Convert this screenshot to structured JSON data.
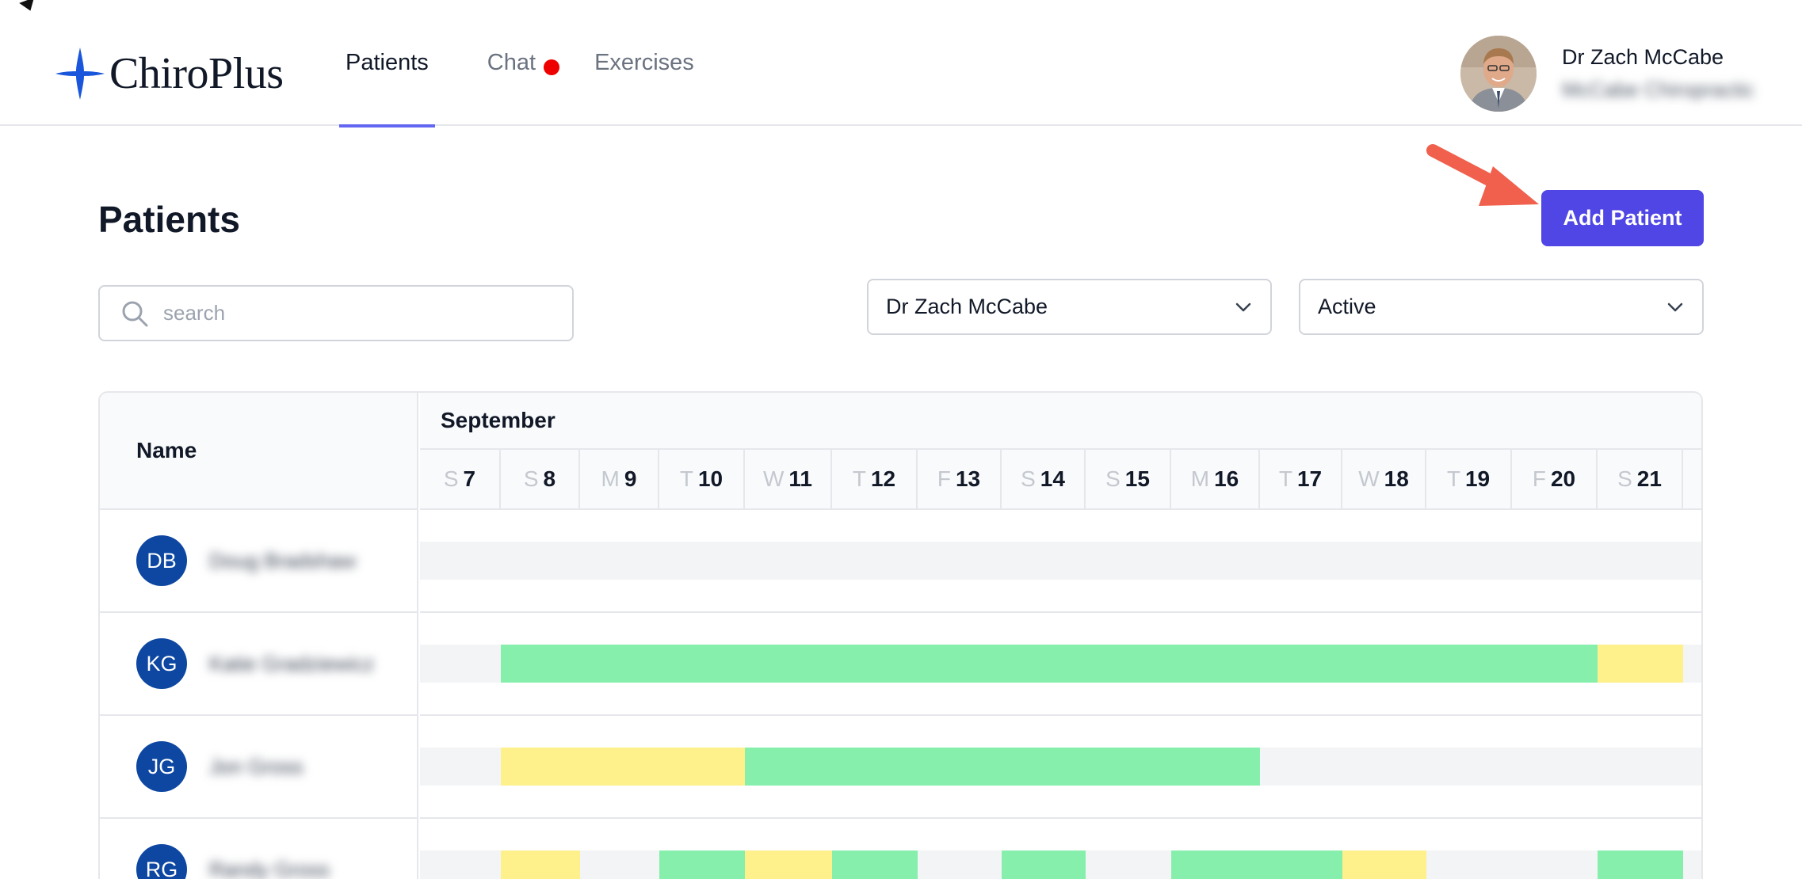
{
  "brand": {
    "name": "ChiroPlus",
    "color": "#1a56db"
  },
  "nav": [
    {
      "label": "Patients",
      "active": true,
      "badge": false
    },
    {
      "label": "Chat",
      "active": false,
      "badge": true
    },
    {
      "label": "Exercises",
      "active": false,
      "badge": false
    }
  ],
  "user": {
    "name": "Dr Zach McCabe",
    "clinic": "McCabe Chiropractic"
  },
  "page": {
    "title": "Patients",
    "add_button": "Add Patient"
  },
  "search": {
    "placeholder": "search",
    "value": ""
  },
  "filters": {
    "doctor": "Dr Zach McCabe",
    "status": "Active"
  },
  "table": {
    "name_header": "Name",
    "month": "September",
    "days": [
      {
        "letter": "S",
        "num": "7"
      },
      {
        "letter": "S",
        "num": "8"
      },
      {
        "letter": "M",
        "num": "9"
      },
      {
        "letter": "T",
        "num": "10"
      },
      {
        "letter": "W",
        "num": "11"
      },
      {
        "letter": "T",
        "num": "12"
      },
      {
        "letter": "F",
        "num": "13"
      },
      {
        "letter": "S",
        "num": "14"
      },
      {
        "letter": "S",
        "num": "15"
      },
      {
        "letter": "M",
        "num": "16"
      },
      {
        "letter": "T",
        "num": "17"
      },
      {
        "letter": "W",
        "num": "18"
      },
      {
        "letter": "T",
        "num": "19"
      },
      {
        "letter": "F",
        "num": "20"
      },
      {
        "letter": "S",
        "num": "21"
      }
    ],
    "colors": {
      "green": "#86efac",
      "yellow": "#fef08a",
      "empty": "#f3f4f6"
    },
    "patients": [
      {
        "initials": "DB",
        "name": "Doug Bradshaw",
        "status": [
          "",
          "",
          "",
          "",
          "",
          "",
          "",
          "",
          "",
          "",
          "",
          "",
          "",
          "",
          ""
        ]
      },
      {
        "initials": "KG",
        "name": "Katie Gradziewicz",
        "status": [
          "",
          "green",
          "green",
          "green",
          "green",
          "green",
          "green",
          "green",
          "green",
          "green",
          "green",
          "green",
          "green",
          "green",
          "yellow"
        ]
      },
      {
        "initials": "JG",
        "name": "Jon Gross",
        "status": [
          "",
          "yellow",
          "yellow",
          "yellow",
          "green",
          "green",
          "green",
          "green",
          "green",
          "green",
          "",
          "",
          "",
          "",
          ""
        ]
      },
      {
        "initials": "RG",
        "name": "Randy Gross",
        "status": [
          "",
          "yellow",
          "",
          "green",
          "yellow",
          "green",
          "",
          "green",
          "",
          "green",
          "green",
          "yellow",
          "",
          "",
          "green"
        ]
      }
    ]
  }
}
